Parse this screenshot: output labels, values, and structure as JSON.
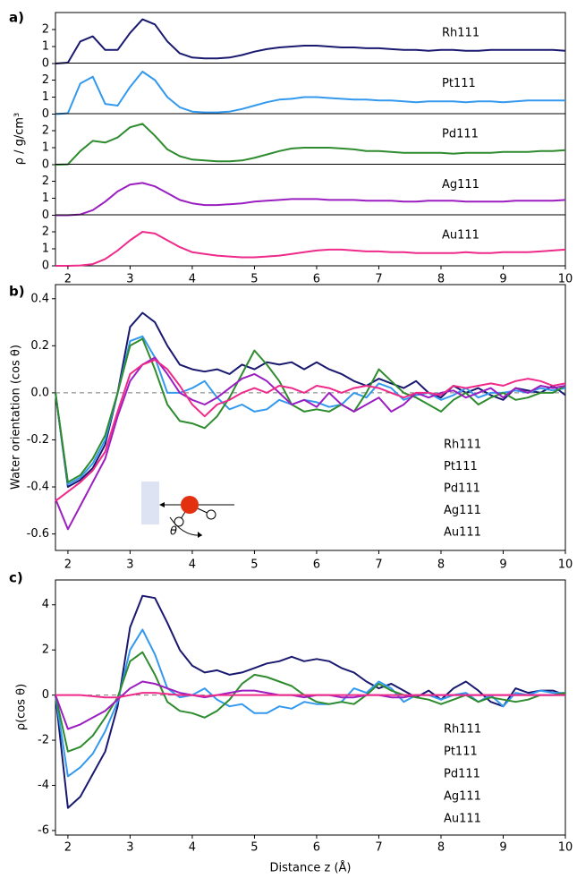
{
  "chart_data": [
    {
      "type": "line",
      "panel_label": "a)",
      "ylabel": "ρ / g/cm³",
      "x": [
        1.8,
        2,
        2.2,
        2.4,
        2.6,
        2.8,
        3,
        3.2,
        3.4,
        3.6,
        3.8,
        4,
        4.2,
        4.4,
        4.6,
        4.8,
        5,
        5.2,
        5.4,
        5.6,
        5.8,
        6,
        6.2,
        6.4,
        6.6,
        6.8,
        7,
        7.2,
        7.4,
        7.6,
        7.8,
        8,
        8.2,
        8.4,
        8.6,
        8.8,
        9,
        9.2,
        9.4,
        9.6,
        9.8,
        10
      ],
      "xlim": [
        1.8,
        10
      ],
      "xticks": [
        2,
        3,
        4,
        5,
        6,
        7,
        8,
        9,
        10
      ],
      "ylim": [
        0,
        3
      ],
      "yticks": [
        0,
        1,
        2
      ],
      "series": [
        {
          "name": "Rh111",
          "color": "#191970",
          "values": [
            0,
            0.05,
            1.3,
            1.6,
            0.8,
            0.8,
            1.8,
            2.6,
            2.3,
            1.3,
            0.6,
            0.35,
            0.3,
            0.3,
            0.35,
            0.5,
            0.7,
            0.85,
            0.95,
            1.0,
            1.05,
            1.05,
            1.0,
            0.95,
            0.95,
            0.9,
            0.9,
            0.85,
            0.8,
            0.8,
            0.75,
            0.8,
            0.8,
            0.75,
            0.75,
            0.8,
            0.8,
            0.8,
            0.8,
            0.8,
            0.8,
            0.75
          ]
        },
        {
          "name": "Pt111",
          "color": "#3399ee",
          "values": [
            0,
            0.05,
            1.8,
            2.2,
            0.6,
            0.5,
            1.6,
            2.5,
            2.0,
            1.0,
            0.4,
            0.15,
            0.1,
            0.1,
            0.15,
            0.3,
            0.5,
            0.7,
            0.85,
            0.9,
            1.0,
            1.0,
            0.95,
            0.9,
            0.85,
            0.85,
            0.8,
            0.8,
            0.75,
            0.7,
            0.75,
            0.75,
            0.75,
            0.7,
            0.75,
            0.75,
            0.7,
            0.75,
            0.8,
            0.8,
            0.8,
            0.8
          ]
        },
        {
          "name": "Pd111",
          "color": "#2e8b2e",
          "values": [
            0,
            0.02,
            0.8,
            1.4,
            1.3,
            1.6,
            2.2,
            2.4,
            1.7,
            0.9,
            0.5,
            0.3,
            0.25,
            0.2,
            0.2,
            0.25,
            0.4,
            0.6,
            0.8,
            0.95,
            1.0,
            1.0,
            1.0,
            0.95,
            0.9,
            0.8,
            0.8,
            0.75,
            0.7,
            0.7,
            0.7,
            0.7,
            0.65,
            0.7,
            0.7,
            0.7,
            0.75,
            0.75,
            0.75,
            0.8,
            0.8,
            0.85
          ]
        },
        {
          "name": "Ag111",
          "color": "#9b1fc0",
          "values": [
            0,
            0,
            0.05,
            0.3,
            0.8,
            1.4,
            1.8,
            1.9,
            1.7,
            1.3,
            0.9,
            0.7,
            0.6,
            0.6,
            0.65,
            0.7,
            0.8,
            0.85,
            0.9,
            0.95,
            0.95,
            0.95,
            0.9,
            0.9,
            0.9,
            0.85,
            0.85,
            0.85,
            0.8,
            0.8,
            0.85,
            0.85,
            0.85,
            0.8,
            0.8,
            0.8,
            0.8,
            0.85,
            0.85,
            0.85,
            0.85,
            0.9
          ]
        },
        {
          "name": "Au111",
          "color": "#ee2a8a",
          "values": [
            0,
            0,
            0.02,
            0.1,
            0.4,
            0.9,
            1.5,
            2.0,
            1.9,
            1.5,
            1.1,
            0.8,
            0.7,
            0.6,
            0.55,
            0.5,
            0.5,
            0.55,
            0.6,
            0.7,
            0.8,
            0.9,
            0.95,
            0.95,
            0.9,
            0.85,
            0.85,
            0.8,
            0.8,
            0.75,
            0.75,
            0.75,
            0.75,
            0.8,
            0.75,
            0.75,
            0.8,
            0.8,
            0.8,
            0.85,
            0.9,
            0.95
          ]
        }
      ]
    },
    {
      "type": "line",
      "panel_label": "b)",
      "ylabel": "Water orientation (cos θ)",
      "annotation": "θ",
      "reference_line": 0,
      "x": [
        1.8,
        2,
        2.2,
        2.4,
        2.6,
        2.8,
        3,
        3.2,
        3.4,
        3.6,
        3.8,
        4,
        4.2,
        4.4,
        4.6,
        4.8,
        5,
        5.2,
        5.4,
        5.6,
        5.8,
        6,
        6.2,
        6.4,
        6.6,
        6.8,
        7,
        7.2,
        7.4,
        7.6,
        7.8,
        8,
        8.2,
        8.4,
        8.6,
        8.8,
        9,
        9.2,
        9.4,
        9.6,
        9.8,
        10
      ],
      "xlim": [
        1.8,
        10
      ],
      "xticks": [
        2,
        3,
        4,
        5,
        6,
        7,
        8,
        9,
        10
      ],
      "ylim": [
        -0.67,
        0.46
      ],
      "yticks": [
        -0.6,
        -0.4,
        -0.2,
        {
          "value": 0,
          "label": "0.0"
        },
        0.2,
        0.4
      ],
      "series": [
        {
          "name": "Rh111",
          "color": "#191970",
          "values": [
            0,
            -0.4,
            -0.37,
            -0.32,
            -0.22,
            0,
            0.28,
            0.34,
            0.3,
            0.2,
            0.12,
            0.1,
            0.09,
            0.1,
            0.08,
            0.12,
            0.1,
            0.13,
            0.12,
            0.13,
            0.1,
            0.13,
            0.1,
            0.08,
            0.05,
            0.03,
            0.06,
            0.04,
            0.02,
            0.05,
            0,
            -0.02,
            0.03,
            0,
            0.02,
            -0.01,
            -0.03,
            0.02,
            0.01,
            0,
            0.03,
            -0.01
          ]
        },
        {
          "name": "Pt111",
          "color": "#3399ee",
          "values": [
            0,
            -0.39,
            -0.36,
            -0.3,
            -0.2,
            0,
            0.22,
            0.24,
            0.15,
            0,
            0,
            0.02,
            0.05,
            -0.02,
            -0.07,
            -0.05,
            -0.08,
            -0.07,
            -0.03,
            -0.05,
            -0.03,
            -0.04,
            -0.06,
            -0.05,
            0,
            -0.02,
            0.04,
            0.02,
            -0.03,
            -0.01,
            0,
            -0.03,
            -0.01,
            0.02,
            -0.02,
            0,
            0,
            0.01,
            0,
            0.02,
            0.01,
            0.02
          ]
        },
        {
          "name": "Pd111",
          "color": "#2e8b2e",
          "values": [
            0,
            -0.38,
            -0.35,
            -0.28,
            -0.18,
            0,
            0.2,
            0.23,
            0.1,
            -0.05,
            -0.12,
            -0.13,
            -0.15,
            -0.1,
            -0.02,
            0.08,
            0.18,
            0.12,
            0.05,
            -0.05,
            -0.08,
            -0.07,
            -0.08,
            -0.05,
            -0.08,
            0,
            0.1,
            0.05,
            0,
            -0.02,
            -0.05,
            -0.08,
            -0.03,
            0,
            -0.05,
            -0.02,
            0,
            -0.03,
            -0.02,
            0,
            0,
            0.03
          ]
        },
        {
          "name": "Ag111",
          "color": "#9b1fc0",
          "values": [
            -0.45,
            -0.58,
            -0.48,
            -0.38,
            -0.28,
            -0.1,
            0.05,
            0.12,
            0.15,
            0.08,
            0,
            -0.03,
            -0.05,
            -0.02,
            0.02,
            0.06,
            0.08,
            0.05,
            0,
            -0.05,
            -0.03,
            -0.06,
            0,
            -0.05,
            -0.08,
            -0.05,
            -0.02,
            -0.08,
            -0.05,
            0,
            -0.02,
            0,
            0.01,
            -0.02,
            0,
            0.02,
            -0.02,
            0.02,
            0,
            0.03,
            0.02,
            0.03
          ]
        },
        {
          "name": "Au111",
          "color": "#ee2a8a",
          "values": [
            -0.46,
            -0.42,
            -0.38,
            -0.33,
            -0.25,
            -0.08,
            0.08,
            0.12,
            0.14,
            0.1,
            0.03,
            -0.05,
            -0.1,
            -0.05,
            -0.03,
            0,
            0.02,
            0,
            0.03,
            0.02,
            0,
            0.03,
            0.02,
            0,
            0.02,
            0.03,
            0.02,
            0,
            -0.02,
            0,
            0,
            -0.01,
            0.03,
            0.02,
            0.03,
            0.04,
            0.03,
            0.05,
            0.06,
            0.05,
            0.03,
            0.04
          ]
        }
      ]
    },
    {
      "type": "line",
      "panel_label": "c)",
      "ylabel": "ρ(cos θ)",
      "xlabel": "Distance z (Å)",
      "reference_line": 0,
      "x": [
        1.8,
        2,
        2.2,
        2.4,
        2.6,
        2.8,
        3,
        3.2,
        3.4,
        3.6,
        3.8,
        4,
        4.2,
        4.4,
        4.6,
        4.8,
        5,
        5.2,
        5.4,
        5.6,
        5.8,
        6,
        6.2,
        6.4,
        6.6,
        6.8,
        7,
        7.2,
        7.4,
        7.6,
        7.8,
        8,
        8.2,
        8.4,
        8.6,
        8.8,
        9,
        9.2,
        9.4,
        9.6,
        9.8,
        10
      ],
      "xlim": [
        1.8,
        10
      ],
      "xticks": [
        2,
        3,
        4,
        5,
        6,
        7,
        8,
        9,
        10
      ],
      "ylim": [
        -6.2,
        5.1
      ],
      "yticks": [
        -6,
        -4,
        -2,
        0,
        2,
        4
      ],
      "series": [
        {
          "name": "Rh111",
          "color": "#191970",
          "values": [
            0,
            -5.0,
            -4.5,
            -3.5,
            -2.5,
            -0.5,
            3.0,
            4.4,
            4.3,
            3.2,
            2.0,
            1.3,
            1.0,
            1.1,
            0.9,
            1.0,
            1.2,
            1.4,
            1.5,
            1.7,
            1.5,
            1.6,
            1.5,
            1.2,
            1.0,
            0.6,
            0.3,
            0.5,
            0.2,
            -0.1,
            0.2,
            -0.2,
            0.3,
            0.6,
            0.2,
            -0.3,
            -0.5,
            0.3,
            0.1,
            0.2,
            0.2,
            0
          ]
        },
        {
          "name": "Pt111",
          "color": "#3399ee",
          "values": [
            0,
            -3.6,
            -3.2,
            -2.6,
            -1.6,
            -0.3,
            2.0,
            2.9,
            1.8,
            0.3,
            -0.1,
            0,
            0.3,
            -0.2,
            -0.5,
            -0.4,
            -0.8,
            -0.8,
            -0.5,
            -0.6,
            -0.3,
            -0.4,
            -0.4,
            -0.3,
            0.3,
            0.1,
            0.6,
            0.3,
            -0.3,
            0,
            0,
            -0.2,
            0,
            0.1,
            -0.3,
            0,
            -0.5,
            0.1,
            0,
            0.2,
            0.1,
            0.1
          ]
        },
        {
          "name": "Pd111",
          "color": "#2e8b2e",
          "values": [
            0,
            -2.5,
            -2.3,
            -1.8,
            -1.0,
            -0.1,
            1.5,
            1.9,
            0.9,
            -0.3,
            -0.7,
            -0.8,
            -1.0,
            -0.7,
            -0.2,
            0.5,
            0.9,
            0.8,
            0.6,
            0.4,
            0,
            -0.3,
            -0.4,
            -0.3,
            -0.4,
            0,
            0.5,
            0.2,
            0,
            -0.1,
            -0.2,
            -0.4,
            -0.2,
            0,
            -0.3,
            -0.1,
            -0.2,
            -0.3,
            -0.2,
            0,
            0,
            0.1
          ]
        },
        {
          "name": "Ag111",
          "color": "#9b1fc0",
          "values": [
            0,
            -1.5,
            -1.3,
            -1.0,
            -0.7,
            -0.2,
            0.3,
            0.6,
            0.5,
            0.3,
            0.1,
            0,
            -0.1,
            0,
            0.1,
            0.2,
            0.2,
            0.1,
            0,
            0,
            -0.1,
            0,
            0,
            -0.1,
            -0.1,
            0,
            0,
            -0.1,
            -0.1,
            0,
            0,
            0,
            0,
            0,
            0,
            0,
            0,
            0,
            0,
            0,
            0,
            0
          ]
        },
        {
          "name": "Au111",
          "color": "#ee2a8a",
          "values": [
            0,
            0,
            0,
            -0.05,
            -0.1,
            -0.1,
            0,
            0.1,
            0.1,
            0.05,
            0,
            0,
            -0.05,
            0,
            0,
            0,
            0,
            0,
            0,
            0,
            0,
            0,
            0,
            0,
            0,
            0,
            0,
            0,
            0,
            0,
            0,
            0,
            0,
            0,
            0,
            0,
            0,
            0,
            0,
            0,
            0,
            0
          ]
        }
      ]
    }
  ]
}
